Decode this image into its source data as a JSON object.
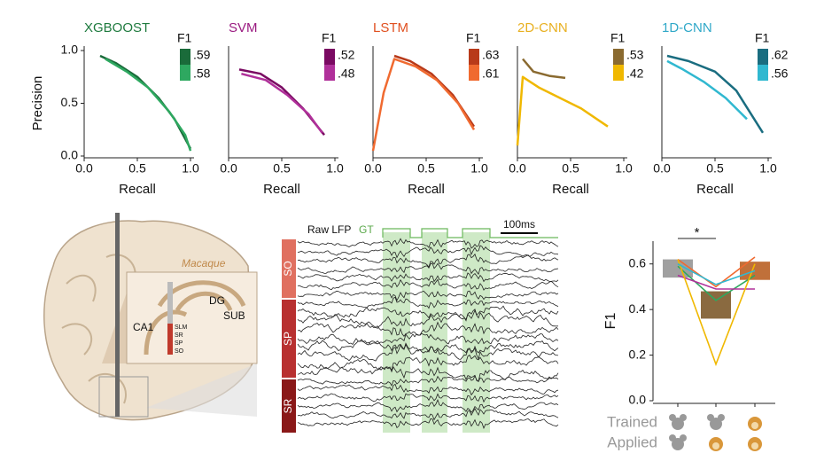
{
  "chart_data": [
    {
      "type": "line",
      "title": "XGBOOST",
      "title_color": "#1e7a3e",
      "xlabel": "Recall",
      "ylabel": "Precision",
      "legend_title": "F1",
      "xlim": [
        0,
        1
      ],
      "ylim": [
        0,
        1
      ],
      "xticks": [
        {
          "value": 0,
          "label": "0.0"
        },
        {
          "value": 0.5,
          "label": "0.5"
        },
        {
          "value": 1,
          "label": "1.0"
        }
      ],
      "yticks": [
        {
          "value": 0,
          "label": "0.0"
        },
        {
          "value": 0.5,
          "label": "0.5"
        },
        {
          "value": 1,
          "label": "1.0"
        }
      ],
      "series": [
        {
          "name": ".59",
          "color": "#1a6b3a",
          "x": [
            0.15,
            0.3,
            0.5,
            0.7,
            0.85,
            1.0
          ],
          "values": [
            0.95,
            0.88,
            0.75,
            0.55,
            0.35,
            0.07
          ]
        },
        {
          "name": ".58",
          "color": "#2ea860",
          "x": [
            0.2,
            0.4,
            0.6,
            0.8,
            0.95,
            1.0
          ],
          "values": [
            0.92,
            0.8,
            0.65,
            0.42,
            0.2,
            0.05
          ]
        }
      ]
    },
    {
      "type": "line",
      "title": "SVM",
      "title_color": "#9a1a80",
      "xlabel": "Recall",
      "legend_title": "F1",
      "xlim": [
        0,
        1
      ],
      "ylim": [
        0,
        1
      ],
      "xticks": [
        {
          "value": 0,
          "label": "0.0"
        },
        {
          "value": 0.5,
          "label": "0.5"
        },
        {
          "value": 1,
          "label": "1.0"
        }
      ],
      "series": [
        {
          "name": ".52",
          "color": "#7a0a62",
          "x": [
            0.1,
            0.3,
            0.5,
            0.7,
            0.9
          ],
          "values": [
            0.82,
            0.78,
            0.65,
            0.45,
            0.2
          ]
        },
        {
          "name": ".48",
          "color": "#b0309a",
          "x": [
            0.12,
            0.35,
            0.55,
            0.75,
            0.88
          ],
          "values": [
            0.78,
            0.72,
            0.58,
            0.4,
            0.22
          ]
        }
      ]
    },
    {
      "type": "line",
      "title": "LSTM",
      "title_color": "#e05020",
      "xlabel": "Recall",
      "legend_title": "F1",
      "xlim": [
        0,
        1
      ],
      "ylim": [
        0,
        1
      ],
      "xticks": [
        {
          "value": 0,
          "label": "0.0"
        },
        {
          "value": 0.5,
          "label": "0.5"
        },
        {
          "value": 1,
          "label": "1.0"
        }
      ],
      "series": [
        {
          "name": ".63",
          "color": "#b83a1a",
          "x": [
            0.2,
            0.35,
            0.55,
            0.75,
            0.95
          ],
          "values": [
            0.95,
            0.9,
            0.78,
            0.58,
            0.28
          ]
        },
        {
          "name": ".61",
          "color": "#f06a30",
          "x": [
            0.0,
            0.1,
            0.2,
            0.4,
            0.6,
            0.8,
            0.95
          ],
          "values": [
            0.05,
            0.6,
            0.92,
            0.85,
            0.72,
            0.5,
            0.25
          ]
        }
      ]
    },
    {
      "type": "line",
      "title": "2D-CNN",
      "title_color": "#e8b020",
      "xlabel": "Recall",
      "legend_title": "F1",
      "xlim": [
        0,
        1
      ],
      "ylim": [
        0,
        1
      ],
      "xticks": [
        {
          "value": 0,
          "label": "0.0"
        },
        {
          "value": 0.5,
          "label": "0.5"
        },
        {
          "value": 1,
          "label": "1.0"
        }
      ],
      "series": [
        {
          "name": ".53",
          "color": "#8a6a30",
          "x": [
            0.05,
            0.15,
            0.3,
            0.45
          ],
          "values": [
            0.92,
            0.8,
            0.76,
            0.74
          ]
        },
        {
          "name": ".42",
          "color": "#f0b800",
          "x": [
            0.0,
            0.05,
            0.2,
            0.4,
            0.6,
            0.85
          ],
          "values": [
            0.1,
            0.75,
            0.65,
            0.55,
            0.45,
            0.28
          ]
        }
      ]
    },
    {
      "type": "line",
      "title": "1D-CNN",
      "title_color": "#30a8c8",
      "xlabel": "Recall",
      "legend_title": "F1",
      "xlim": [
        0,
        1
      ],
      "ylim": [
        0,
        1
      ],
      "xticks": [
        {
          "value": 0,
          "label": "0.0"
        },
        {
          "value": 0.5,
          "label": "0.5"
        },
        {
          "value": 1,
          "label": "1.0"
        }
      ],
      "series": [
        {
          "name": ".62",
          "color": "#1a6d80",
          "x": [
            0.05,
            0.25,
            0.5,
            0.7,
            0.95
          ],
          "values": [
            0.95,
            0.9,
            0.8,
            0.62,
            0.22
          ]
        },
        {
          "name": ".56",
          "color": "#30b8d0",
          "x": [
            0.05,
            0.2,
            0.4,
            0.6,
            0.8
          ],
          "values": [
            0.9,
            0.82,
            0.7,
            0.55,
            0.35
          ]
        }
      ]
    },
    {
      "type": "box",
      "ylabel": "F1",
      "ylim": [
        0,
        0.7
      ],
      "yticks": [
        {
          "value": 0,
          "label": "0.0"
        },
        {
          "value": 0.2,
          "label": "0.2"
        },
        {
          "value": 0.4,
          "label": "0.4"
        },
        {
          "value": 0.6,
          "label": "0.6"
        }
      ],
      "categories": [
        null,
        null,
        null
      ],
      "box_low": [
        0.54,
        0.36,
        0.53
      ],
      "box_high": [
        0.62,
        0.48,
        0.61
      ],
      "box_colors": [
        "#a0a0a0",
        "#8a6a40",
        "#c0703a"
      ],
      "series": [
        {
          "color": "#2ea860",
          "values": [
            0.59,
            0.44,
            0.55
          ]
        },
        {
          "color": "#b0309a",
          "values": [
            0.55,
            0.49,
            0.49
          ]
        },
        {
          "color": "#f06a30",
          "values": [
            0.62,
            0.5,
            0.63
          ]
        },
        {
          "color": "#f0b800",
          "values": [
            0.62,
            0.16,
            0.6
          ]
        },
        {
          "color": "#30b8d0",
          "values": [
            0.6,
            0.51,
            0.57
          ]
        }
      ],
      "annotation": "*",
      "row_labels": [
        "Trained",
        "Applied"
      ]
    }
  ],
  "diagram": {
    "species": "Macaque",
    "regions": [
      "DG",
      "SUB",
      "CA1"
    ],
    "layers": [
      "SLM",
      "SR",
      "SP",
      "SO"
    ]
  },
  "lfp": {
    "raw_label": "Raw LFP",
    "gt_label": "GT",
    "scale_label": "100ms",
    "layers": [
      "SO",
      "SP",
      "SR"
    ]
  }
}
